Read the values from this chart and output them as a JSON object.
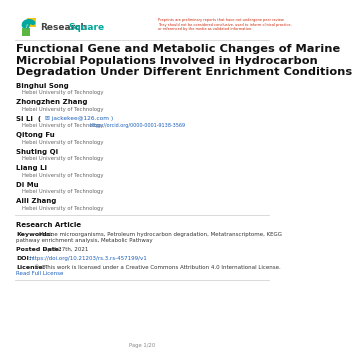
{
  "disclaimer_lines": [
    "Preprints are preliminary reports that have not undergone peer review.",
    "They should not be considered conclusive, used to inform clinical practice,",
    "or referenced by the media as validated information."
  ],
  "title_lines": [
    "Functional Gene and Metabolic Changes of Marine",
    "Microbial Populations Involved in Hydrocarbon",
    "Degradation Under Different Enrichment Conditions"
  ],
  "authors": [
    {
      "name": "Binghui Song",
      "affil": "Hebei University of Technology"
    },
    {
      "name": "Zhongzhen Zhang",
      "affil": "Hebei University of Technology"
    },
    {
      "name": "Si Li",
      "email": "jackekee@126.com",
      "orcid": "https://orcid.org/0000-0001-9138-3569",
      "affil": "Hebei University of Technology"
    },
    {
      "name": "Qitong Fu",
      "affil": "Hebei University of Technology"
    },
    {
      "name": "Shuting Qi",
      "affil": "Hebei University of Technology"
    },
    {
      "name": "Liang Li",
      "affil": "Hebei University of Technology"
    },
    {
      "name": "Di Mu",
      "affil": "Hebei University of Technology"
    },
    {
      "name": "Aili Zhang",
      "affil": "Hebei University of Technology"
    }
  ],
  "article_type": "Research Article",
  "keywords_label": "Keywords:",
  "keywords_line1": "Marine microorganisms, Petroleum hydrocarbon degradation, Metatranscriptome, KEGG",
  "keywords_line2": "pathway enrichment analysis, Metabolic Pathway",
  "posted_label": "Posted Date:",
  "posted_date": "April 27th, 2021",
  "doi_label": "DOI:",
  "doi": "https://doi.org/10.21203/rs.3.rs-457199/v1",
  "license_label": "License:",
  "license_cc": "© ⊕",
  "license_text": "This work is licensed under a Creative Commons Attribution 4.0 International License.",
  "read_full_license": "Read Full License",
  "page_text": "Page 1/20",
  "bg_color": "#ffffff",
  "title_color": "#111111",
  "author_name_color": "#111111",
  "affil_color": "#666666",
  "link_color": "#1a5fbb",
  "disclaimer_color": "#cc2200",
  "line_color": "#cccccc",
  "logo_green": "#5bb543",
  "logo_yellow": "#f5c518",
  "logo_teal": "#00a99d",
  "logo_red": "#e8392a"
}
